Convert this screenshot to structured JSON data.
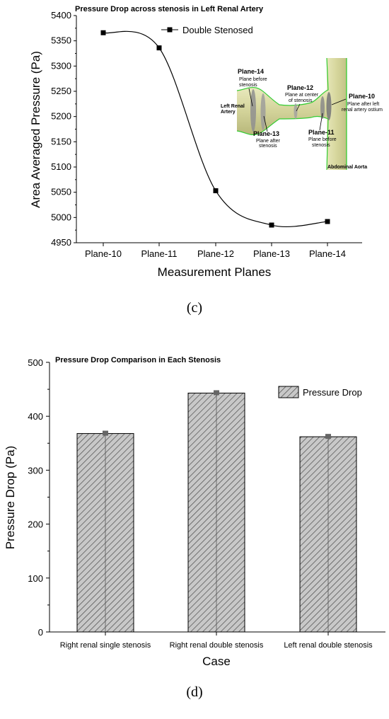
{
  "chart_data": [
    {
      "type": "line",
      "panel_label": "(c)",
      "title": "Pressure Drop across stenosis in Left Renal Artery",
      "xlabel": "Measurement Planes",
      "ylabel": "Area Averaged Pressure (Pa)",
      "categories": [
        "Plane-10",
        "Plane-11",
        "Plane-12",
        "Plane-13",
        "Plane-14"
      ],
      "series": [
        {
          "name": "Double Stenosed",
          "values": [
            5366,
            5336,
            5053,
            4985,
            4992
          ]
        }
      ],
      "ylim": [
        4950,
        5400
      ],
      "yticks": [
        4950,
        5000,
        5050,
        5100,
        5150,
        5200,
        5250,
        5300,
        5350,
        5400
      ],
      "legend_position": "top-center",
      "grid": false,
      "inset": {
        "left_label": [
          "Left Renal",
          "Artery"
        ],
        "right_label": "Abdominal Aorta",
        "planes": [
          {
            "name": "Plane-14",
            "desc": [
              "Plane before",
              "stenosis"
            ]
          },
          {
            "name": "Plane-13",
            "desc": [
              "Plane after",
              "stenosis"
            ]
          },
          {
            "name": "Plane-12",
            "desc": [
              "Plane at center",
              "of stenosis"
            ]
          },
          {
            "name": "Plane-11",
            "desc": [
              "Plane before",
              "stenosis"
            ]
          },
          {
            "name": "Plane-10",
            "desc": [
              "Plane after left",
              "renal artery ostium"
            ]
          }
        ]
      }
    },
    {
      "type": "bar",
      "panel_label": "(d)",
      "title": "Pressure Drop Comparison in Each Stenosis",
      "xlabel": "Case",
      "ylabel": "Pressure Drop (Pa)",
      "categories": [
        "Right renal single stenosis",
        "Right renal double stenosis",
        "Left renal double stenosis"
      ],
      "series": [
        {
          "name": "Pressure Drop",
          "values": [
            368,
            443,
            362
          ]
        }
      ],
      "ylim": [
        0,
        500
      ],
      "yticks": [
        0,
        100,
        200,
        300,
        400,
        500
      ],
      "legend_position": "top-right",
      "grid": false,
      "bar_fill": "diagonal-hatch"
    }
  ]
}
